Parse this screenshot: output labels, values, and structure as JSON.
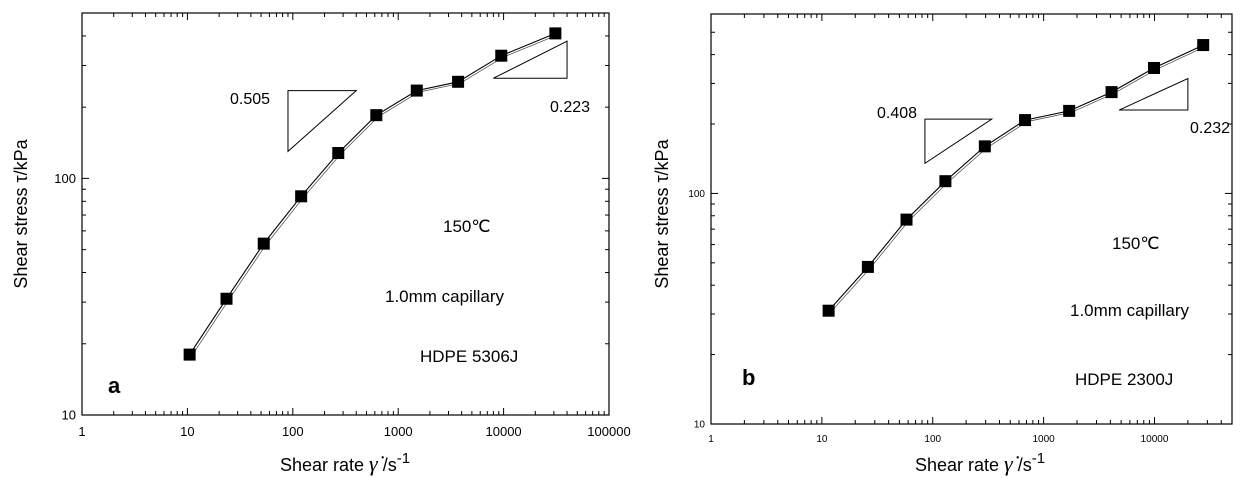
{
  "chart_data": [
    {
      "panel_id": "a",
      "type": "scatter",
      "x_scale": "log",
      "y_scale": "log",
      "xlim": [
        1,
        100000
      ],
      "ylim": [
        10,
        500
      ],
      "xlabel_prefix": "Shear rate",
      "xlabel_symbol": "γ̇",
      "xlabel_unit": "/s",
      "xlabel_exp": "-1",
      "ylabel": "Shear stress τ/kPa",
      "x_ticks": [
        {
          "value": 1,
          "label": "1"
        },
        {
          "value": 10,
          "label": "10"
        },
        {
          "value": 100,
          "label": "100"
        },
        {
          "value": 1000,
          "label": "1000"
        },
        {
          "value": 10000,
          "label": "10000"
        },
        {
          "value": 100000,
          "label": "100000"
        }
      ],
      "y_ticks": [
        {
          "value": 10,
          "label": "10"
        },
        {
          "value": 100,
          "label": "100"
        }
      ],
      "series": [
        {
          "marker": "square",
          "x": [
            10.5,
            23.5,
            53,
            120,
            270,
            620,
            1500,
            3700,
            9500,
            31000
          ],
          "y": [
            18,
            31,
            53,
            84,
            128,
            185,
            235,
            256,
            330,
            410
          ]
        }
      ],
      "slope_triangles": [
        {
          "label": "0.505",
          "x0": 90,
          "x1": 400,
          "y_low": 130,
          "y_high": 235,
          "corner": "upper-left"
        },
        {
          "label": "0.223",
          "x0": 8000,
          "x1": 40000,
          "y_low": 265,
          "y_high": 380,
          "corner": "lower-right"
        }
      ],
      "annotations": [
        "150℃",
        "1.0mm capillary",
        "HDPE 5306J"
      ]
    },
    {
      "panel_id": "b",
      "type": "scatter",
      "x_scale": "log",
      "y_scale": "log",
      "xlim": [
        1,
        50000
      ],
      "ylim": [
        10,
        600
      ],
      "xlabel_prefix": "Shear rate",
      "xlabel_symbol": "γ̇",
      "xlabel_unit": "/s",
      "xlabel_exp": "-1",
      "ylabel": "Shear stress τ/kPa",
      "x_ticks": [
        {
          "value": 1,
          "label": "1"
        },
        {
          "value": 10,
          "label": "10"
        },
        {
          "value": 100,
          "label": "100"
        },
        {
          "value": 1000,
          "label": "1000"
        },
        {
          "value": 10000,
          "label": "10000"
        }
      ],
      "y_ticks": [
        {
          "value": 10,
          "label": "10"
        },
        {
          "value": 100,
          "label": "100"
        }
      ],
      "series": [
        {
          "marker": "square",
          "x": [
            11.5,
            26,
            58,
            130,
            295,
            680,
            1700,
            4100,
            9900,
            27500
          ],
          "y": [
            31,
            48,
            77,
            113,
            160,
            208,
            228,
            275,
            350,
            440
          ]
        }
      ],
      "slope_triangles": [
        {
          "label": "0.408",
          "x0": 85,
          "x1": 340,
          "y_low": 135,
          "y_high": 210,
          "corner": "upper-left"
        },
        {
          "label": "0.232",
          "x0": 4800,
          "x1": 20000,
          "y_low": 230,
          "y_high": 315,
          "corner": "lower-right"
        }
      ],
      "annotations": [
        "150℃",
        "1.0mm capillary",
        "HDPE 2300J"
      ]
    }
  ]
}
